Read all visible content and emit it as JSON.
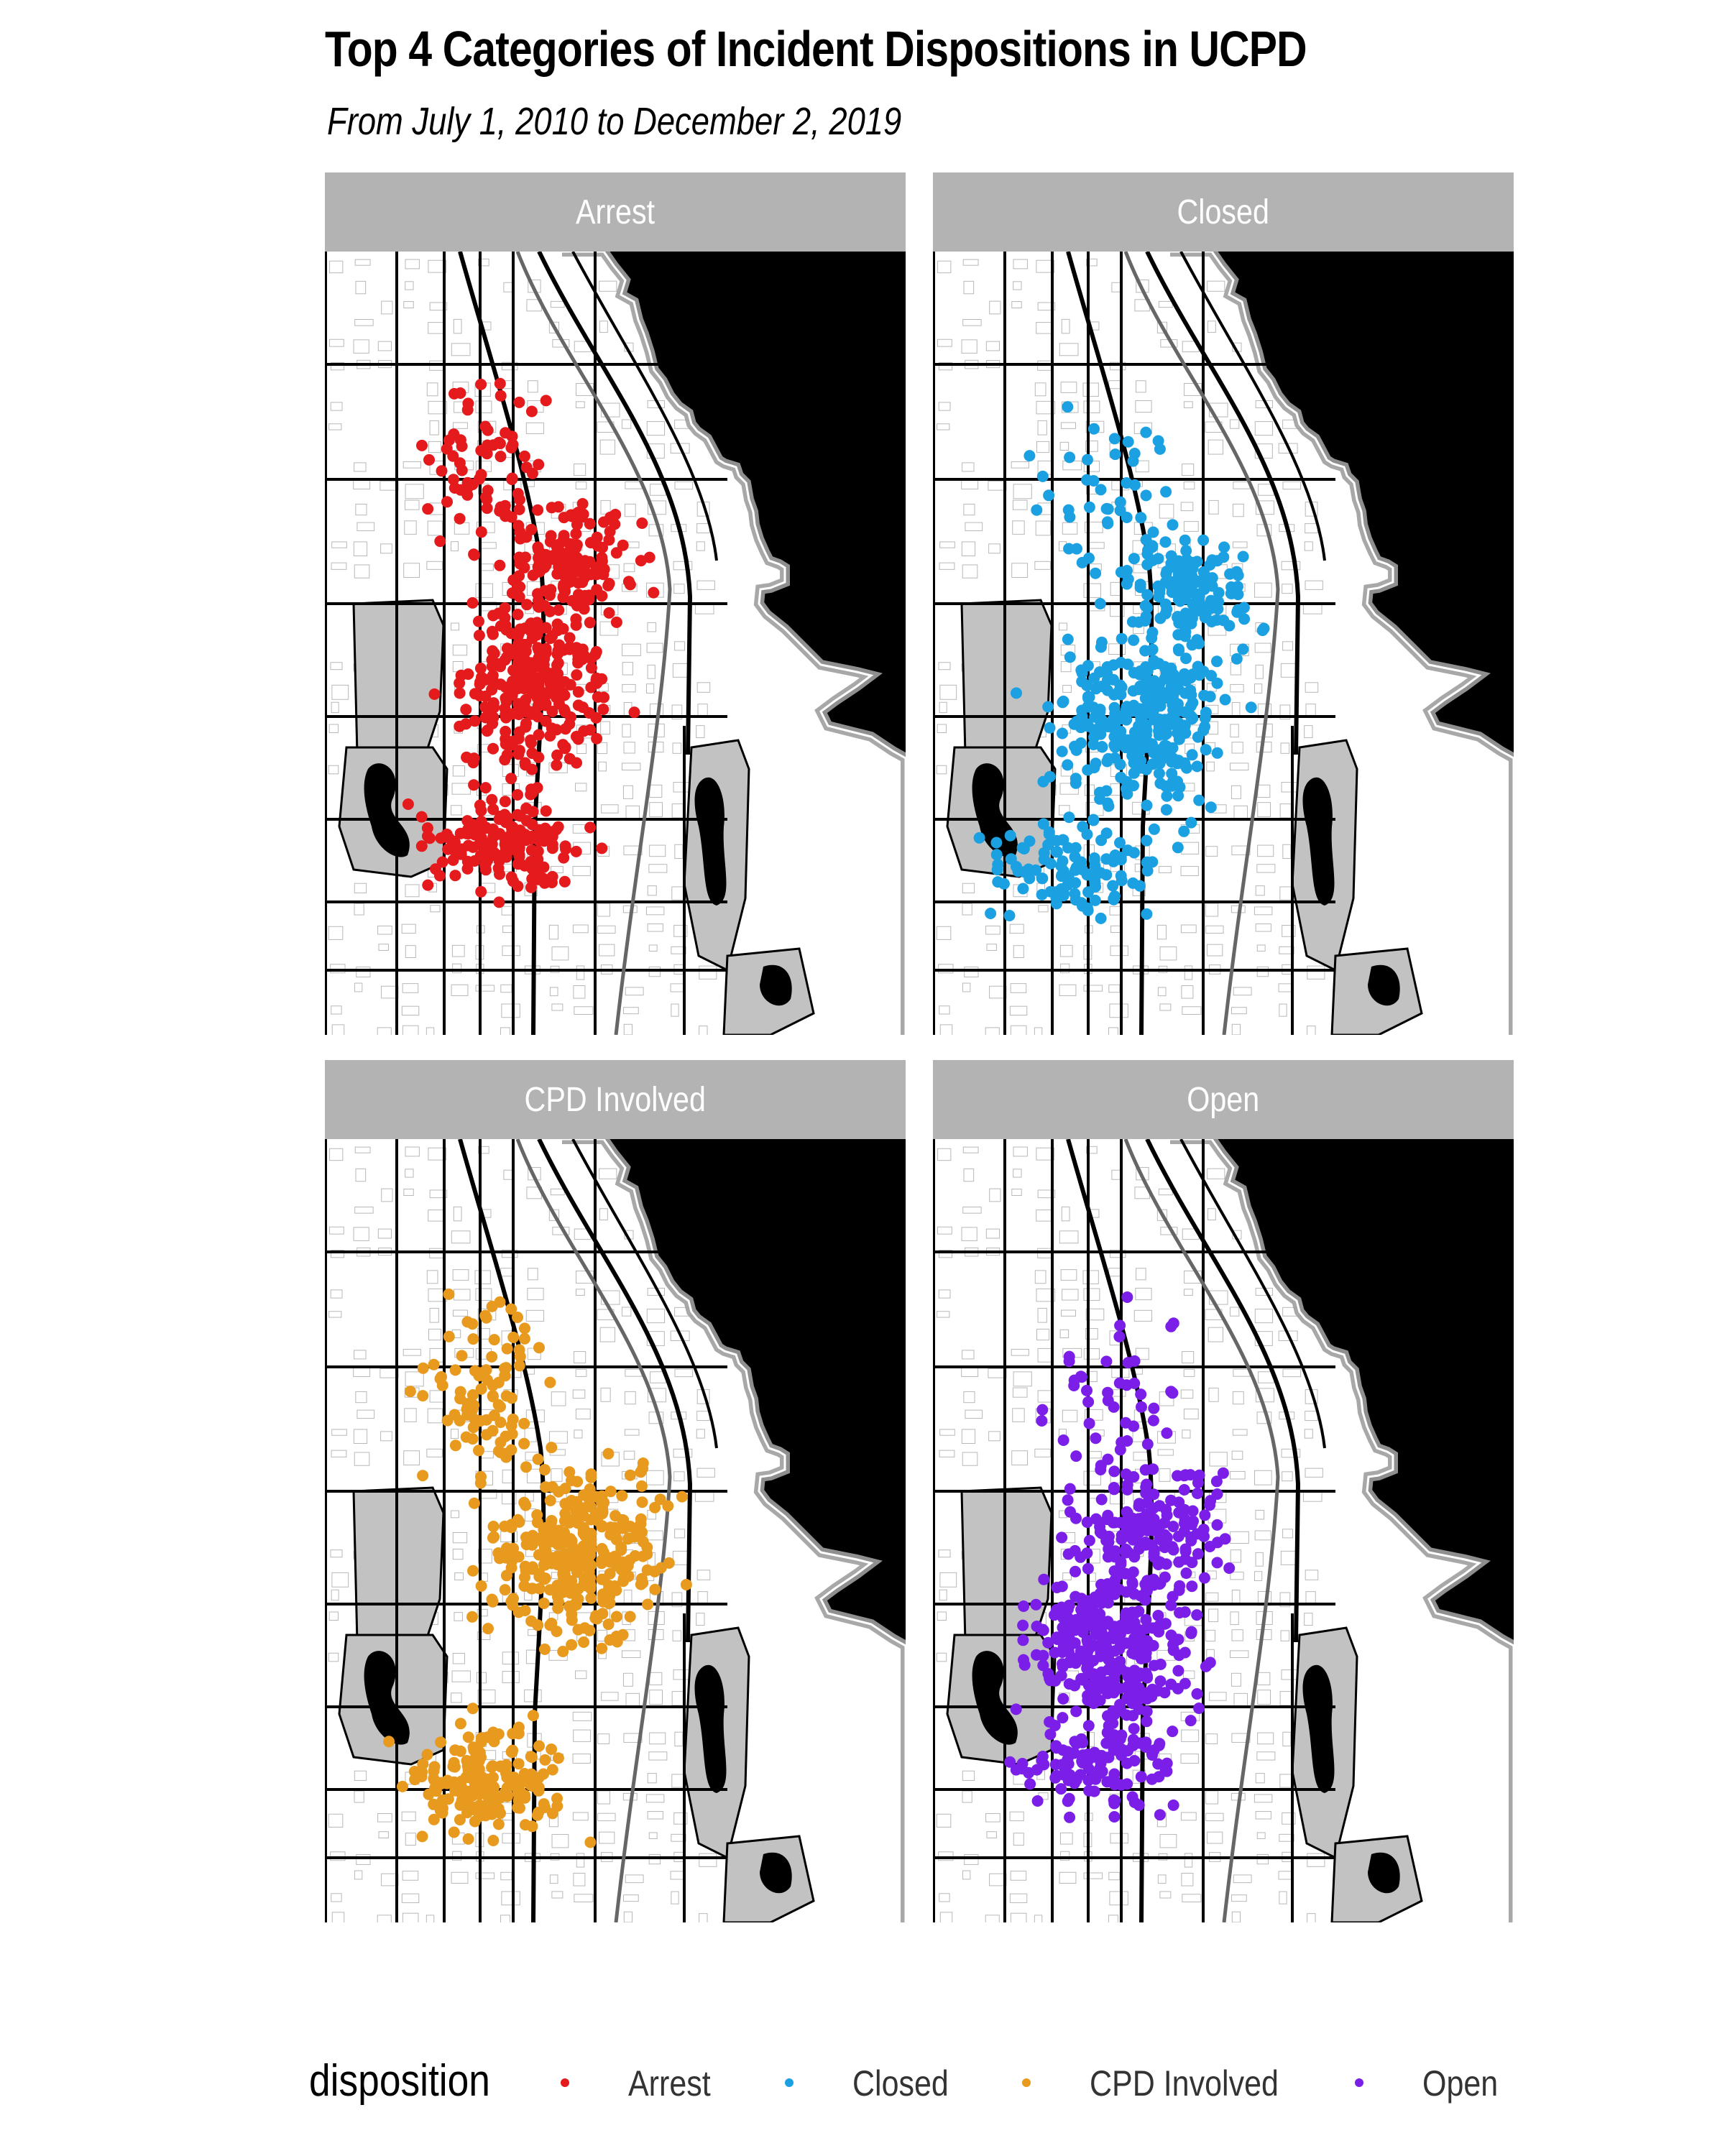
{
  "title": "Top 4 Categories of Incident Dispositions in UCPD",
  "subtitle": "From July 1, 2010 to December 2, 2019",
  "legend": {
    "title": "disposition",
    "items": [
      {
        "label": "Arrest",
        "color": "#e41a1c"
      },
      {
        "label": "Closed",
        "color": "#1ba1e2"
      },
      {
        "label": "CPD Involved",
        "color": "#e89a1f"
      },
      {
        "label": "Open",
        "color": "#7b1fe8"
      }
    ]
  },
  "panels": [
    {
      "label": "Arrest",
      "color": "#e41a1c"
    },
    {
      "label": "Closed",
      "color": "#1ba1e2"
    },
    {
      "label": "CPD Involved",
      "color": "#e89a1f"
    },
    {
      "label": "Open",
      "color": "#7b1fe8"
    }
  ],
  "map": {
    "basemap": "street map of Hyde Park, Chicago with Lake Michigan",
    "water_color": "#000000",
    "park_color": "#bdbdbd",
    "street_color": "#000000"
  }
}
